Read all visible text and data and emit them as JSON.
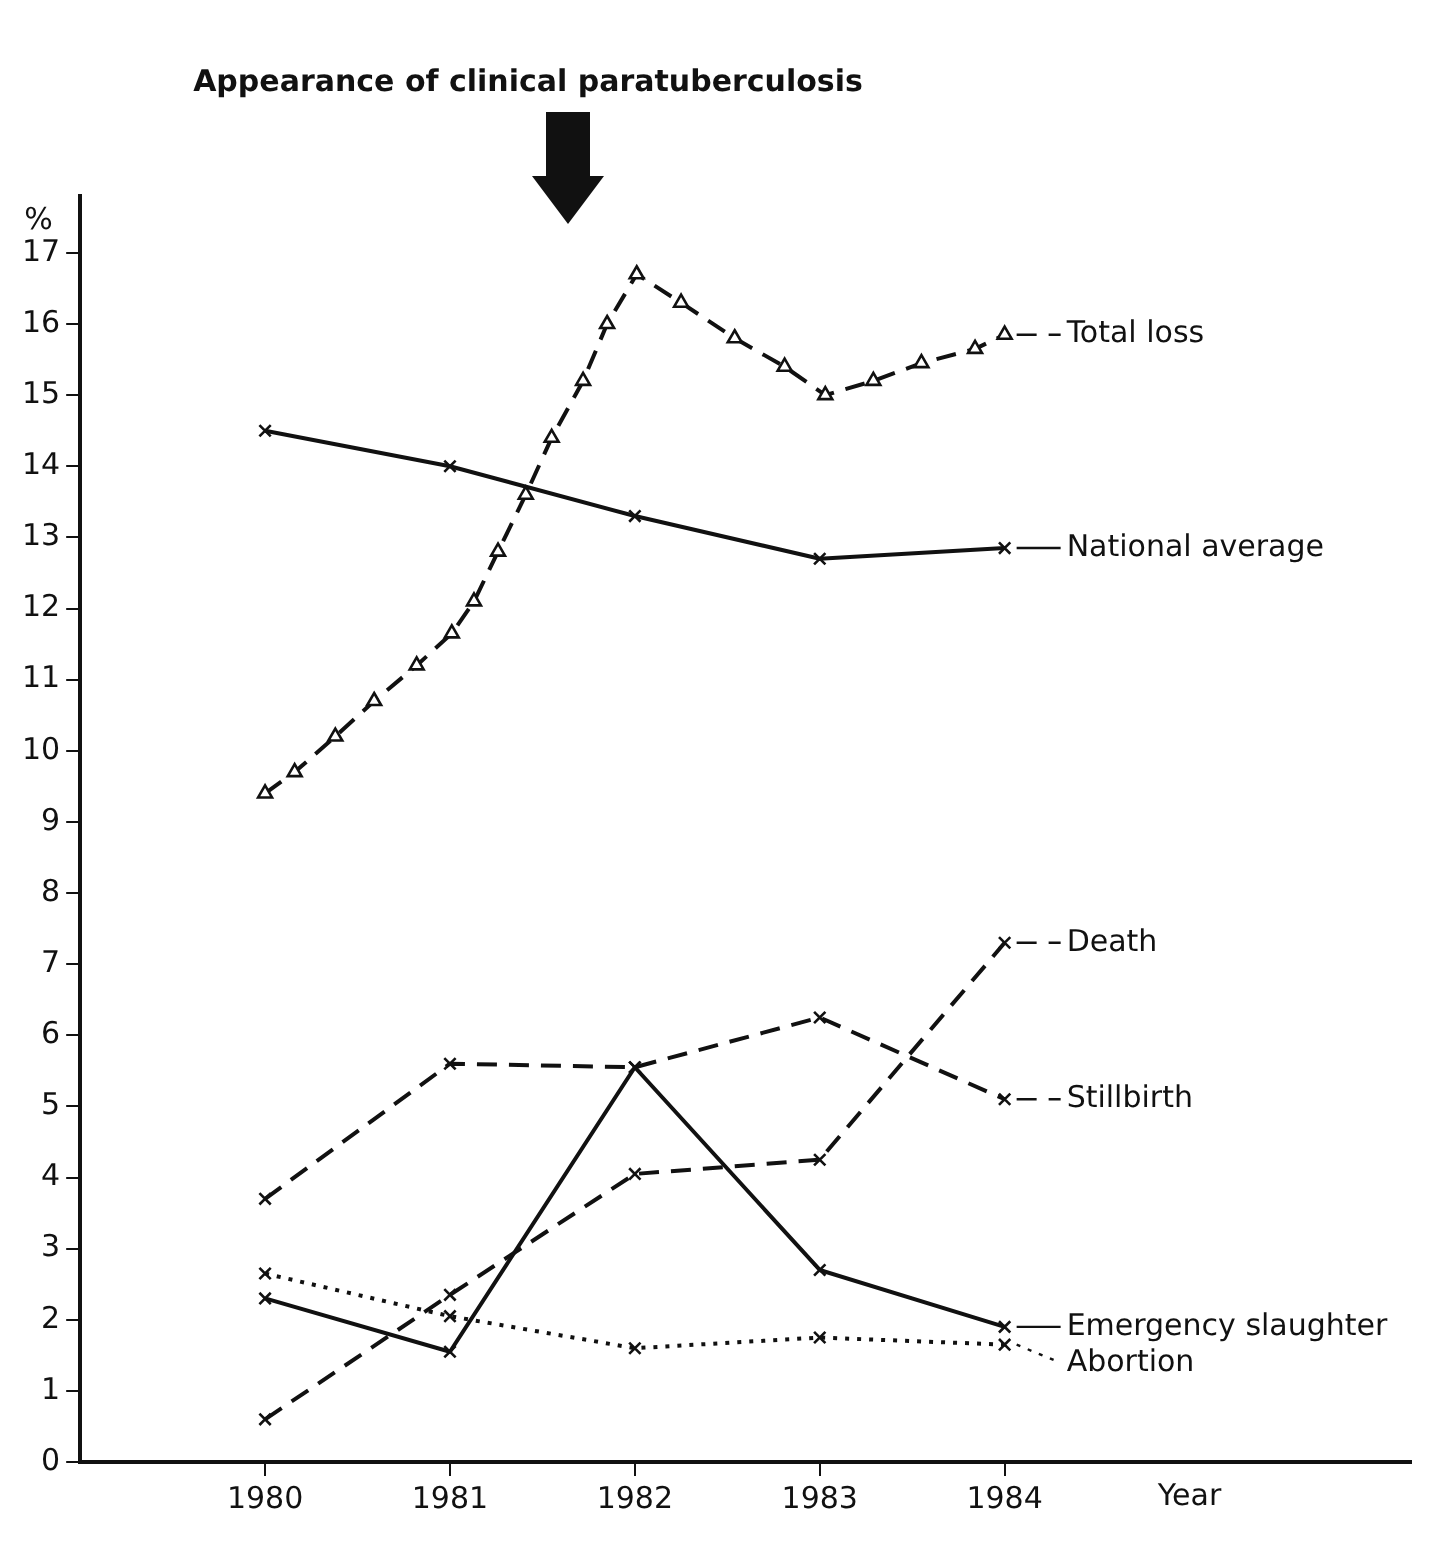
{
  "chart_data": {
    "type": "line",
    "xlabel": "Year",
    "ylabel": "%",
    "xlim": [
      1979,
      1986.2
    ],
    "xticks": [
      1980,
      1981,
      1982,
      1983,
      1984
    ],
    "ylim": [
      0,
      17.8
    ],
    "yticks": [
      0,
      1,
      2,
      3,
      4,
      5,
      6,
      7,
      8,
      9,
      10,
      11,
      12,
      13,
      14,
      15,
      16,
      17
    ],
    "grid": false,
    "legend": "right",
    "annotations": [
      "Appearance of clinical paratuberculosis"
    ],
    "series": [
      {
        "name": "Total loss",
        "color": "#111111",
        "marker": "triangle",
        "line_style": "dashed",
        "x": [
          1980,
          1980.16,
          1980.38,
          1980.59,
          1980.82,
          1981.01,
          1981.13,
          1981.26,
          1981.41,
          1981.55,
          1981.72,
          1981.85,
          1982.01,
          1982.25,
          1982.54,
          1982.81,
          1983.03,
          1983.29,
          1983.55,
          1983.84,
          1984
        ],
        "values": [
          9.4,
          9.7,
          10.2,
          10.7,
          11.2,
          11.65,
          12.1,
          12.8,
          13.6,
          14.4,
          15.2,
          16.0,
          16.7,
          16.3,
          15.8,
          15.4,
          15.0,
          15.2,
          15.45,
          15.65,
          15.85
        ]
      },
      {
        "name": "National average",
        "color": "#111111",
        "marker": "cross",
        "line_style": "solid",
        "x": [
          1980,
          1981,
          1982,
          1983,
          1984
        ],
        "values": [
          14.5,
          14.0,
          13.3,
          12.7,
          12.85
        ]
      },
      {
        "name": "Death",
        "color": "#111111",
        "marker": "cross",
        "line_style": "dashed",
        "x": [
          1980,
          1981,
          1982,
          1983,
          1984
        ],
        "values": [
          0.6,
          2.35,
          4.05,
          4.25,
          7.3
        ]
      },
      {
        "name": "Stillbirth",
        "color": "#111111",
        "marker": "cross",
        "line_style": "dashed",
        "x": [
          1980,
          1981,
          1982,
          1983,
          1984
        ],
        "values": [
          3.7,
          5.6,
          5.55,
          6.25,
          5.1
        ]
      },
      {
        "name": "Emergency slaughter",
        "color": "#111111",
        "marker": "cross",
        "line_style": "solid",
        "x": [
          1980,
          1981,
          1982,
          1983,
          1984
        ],
        "values": [
          2.3,
          1.55,
          5.55,
          2.7,
          1.9
        ]
      },
      {
        "name": "Abortion",
        "color": "#111111",
        "marker": "cross",
        "line_style": "dotted",
        "x": [
          1980,
          1981,
          1982,
          1983,
          1984
        ],
        "values": [
          2.65,
          2.05,
          1.6,
          1.75,
          1.65
        ]
      }
    ]
  }
}
